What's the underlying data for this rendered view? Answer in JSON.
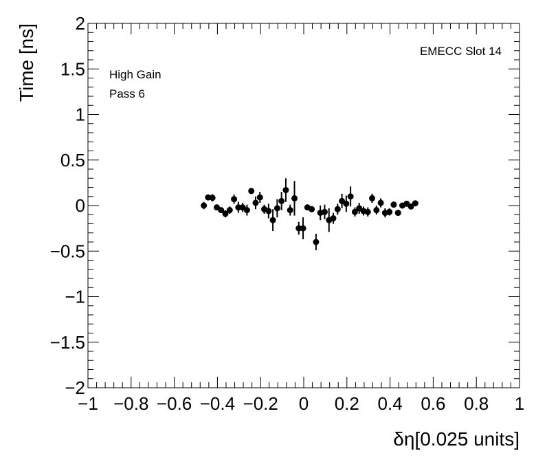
{
  "chart_data": {
    "type": "scatter",
    "xlabel": "δη[0.025 units]",
    "ylabel": "Time [ns]",
    "xlim": [
      -1,
      1
    ],
    "ylim": [
      -2,
      2
    ],
    "x_ticks": [
      -1,
      -0.8,
      -0.6,
      -0.4,
      -0.2,
      0,
      0.2,
      0.4,
      0.6,
      0.8,
      1
    ],
    "y_ticks": [
      -2,
      -1.5,
      -1,
      -0.5,
      0,
      0.5,
      1,
      1.5,
      2
    ],
    "x_tick_labels": [
      "−1",
      "−0.8",
      "−0.6",
      "−0.4",
      "−0.2",
      "0",
      "0.2",
      "0.4",
      "0.6",
      "0.8",
      "1"
    ],
    "y_tick_labels": [
      "−2",
      "−1.5",
      "−1",
      "−0.5",
      "0",
      "0.5",
      "1",
      "1.5",
      "2"
    ],
    "annotations": {
      "top_right": "EMECC Slot 14",
      "line1": "High Gain",
      "line2": "Pass 6"
    },
    "grid": false,
    "marker_color": "#000000",
    "points": [
      {
        "x": -0.463,
        "y": 0.0,
        "err": 0.04
      },
      {
        "x": -0.443,
        "y": 0.09,
        "err": 0.03
      },
      {
        "x": -0.423,
        "y": 0.085,
        "err": 0.04
      },
      {
        "x": -0.403,
        "y": -0.02,
        "err": 0.03
      },
      {
        "x": -0.383,
        "y": -0.05,
        "err": 0.03
      },
      {
        "x": -0.363,
        "y": -0.09,
        "err": 0.04
      },
      {
        "x": -0.343,
        "y": -0.05,
        "err": 0.04
      },
      {
        "x": -0.323,
        "y": 0.07,
        "err": 0.05
      },
      {
        "x": -0.303,
        "y": -0.02,
        "err": 0.06
      },
      {
        "x": -0.283,
        "y": -0.02,
        "err": 0.05
      },
      {
        "x": -0.263,
        "y": -0.05,
        "err": 0.06
      },
      {
        "x": -0.243,
        "y": 0.16,
        "err": 0.03
      },
      {
        "x": -0.223,
        "y": 0.03,
        "err": 0.07
      },
      {
        "x": -0.203,
        "y": 0.09,
        "err": 0.06
      },
      {
        "x": -0.183,
        "y": -0.04,
        "err": 0.05
      },
      {
        "x": -0.163,
        "y": -0.06,
        "err": 0.08
      },
      {
        "x": -0.143,
        "y": -0.16,
        "err": 0.12
      },
      {
        "x": -0.123,
        "y": -0.03,
        "err": 0.1
      },
      {
        "x": -0.103,
        "y": 0.05,
        "err": 0.1
      },
      {
        "x": -0.083,
        "y": 0.17,
        "err": 0.13
      },
      {
        "x": -0.063,
        "y": -0.05,
        "err": 0.06
      },
      {
        "x": -0.043,
        "y": 0.08,
        "err": 0.19
      },
      {
        "x": -0.023,
        "y": -0.25,
        "err": 0.07
      },
      {
        "x": -0.003,
        "y": -0.25,
        "err": 0.12
      },
      {
        "x": 0.017,
        "y": -0.02,
        "err": 0.03
      },
      {
        "x": 0.037,
        "y": -0.04,
        "err": 0.03
      },
      {
        "x": 0.057,
        "y": -0.4,
        "err": 0.09
      },
      {
        "x": 0.077,
        "y": -0.08,
        "err": 0.08
      },
      {
        "x": 0.097,
        "y": -0.07,
        "err": 0.08
      },
      {
        "x": 0.117,
        "y": -0.16,
        "err": 0.13
      },
      {
        "x": 0.137,
        "y": -0.14,
        "err": 0.06
      },
      {
        "x": 0.157,
        "y": -0.04,
        "err": 0.06
      },
      {
        "x": 0.177,
        "y": 0.05,
        "err": 0.08
      },
      {
        "x": 0.197,
        "y": 0.02,
        "err": 0.09
      },
      {
        "x": 0.217,
        "y": 0.1,
        "err": 0.11
      },
      {
        "x": 0.237,
        "y": -0.07,
        "err": 0.05
      },
      {
        "x": 0.257,
        "y": -0.03,
        "err": 0.06
      },
      {
        "x": 0.277,
        "y": -0.06,
        "err": 0.05
      },
      {
        "x": 0.297,
        "y": -0.07,
        "err": 0.05
      },
      {
        "x": 0.317,
        "y": 0.08,
        "err": 0.05
      },
      {
        "x": 0.337,
        "y": -0.05,
        "err": 0.05
      },
      {
        "x": 0.357,
        "y": 0.03,
        "err": 0.05
      },
      {
        "x": 0.377,
        "y": -0.08,
        "err": 0.05
      },
      {
        "x": 0.397,
        "y": -0.07,
        "err": 0.04
      },
      {
        "x": 0.417,
        "y": 0.01,
        "err": 0.03
      },
      {
        "x": 0.437,
        "y": -0.08,
        "err": 0.03
      },
      {
        "x": 0.457,
        "y": 0.0,
        "err": 0.03
      },
      {
        "x": 0.477,
        "y": 0.02,
        "err": 0.03
      },
      {
        "x": 0.497,
        "y": -0.01,
        "err": 0.03
      },
      {
        "x": 0.517,
        "y": 0.025,
        "err": 0.03
      }
    ]
  }
}
